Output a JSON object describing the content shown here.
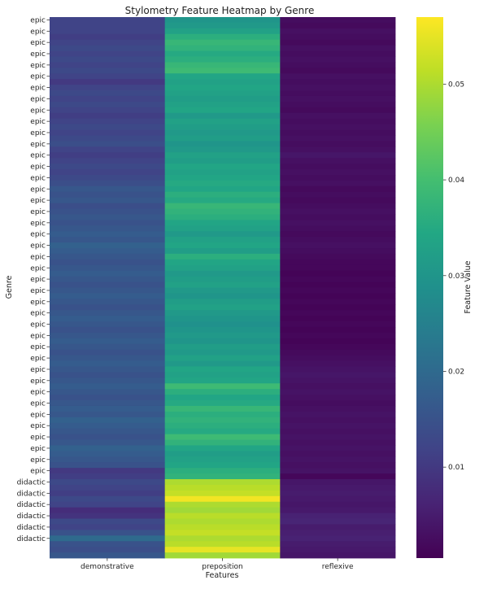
{
  "chart_data": {
    "type": "heatmap",
    "title": "Stylometry Feature Heatmap by Genre",
    "xlabel": "Features",
    "ylabel": "Genre",
    "columns": [
      "demonstrative",
      "preposition",
      "reflexive"
    ],
    "rows": [
      {
        "label": "epic",
        "values": [
          0.012,
          0.03,
          0.0025
        ]
      },
      {
        "label": "epic",
        "values": [
          0.012,
          0.031,
          0.002
        ]
      },
      {
        "label": "epic",
        "values": [
          0.012,
          0.033,
          0.003
        ]
      },
      {
        "label": "epic",
        "values": [
          0.011,
          0.036,
          0.0025
        ]
      },
      {
        "label": "epic",
        "values": [
          0.012,
          0.038,
          0.002
        ]
      },
      {
        "label": "epic",
        "values": [
          0.013,
          0.037,
          0.003
        ]
      },
      {
        "label": "epic",
        "values": [
          0.012,
          0.035,
          0.0025
        ]
      },
      {
        "label": "epic",
        "values": [
          0.013,
          0.036,
          0.003
        ]
      },
      {
        "label": "epic",
        "values": [
          0.012,
          0.038,
          0.0025
        ]
      },
      {
        "label": "epic",
        "values": [
          0.013,
          0.039,
          0.002
        ]
      },
      {
        "label": "epic",
        "values": [
          0.012,
          0.034,
          0.003
        ]
      },
      {
        "label": "epic",
        "values": [
          0.01,
          0.033,
          0.0025
        ]
      },
      {
        "label": "epic",
        "values": [
          0.012,
          0.034,
          0.003
        ]
      },
      {
        "label": "epic",
        "values": [
          0.013,
          0.033,
          0.0025
        ]
      },
      {
        "label": "epic",
        "values": [
          0.012,
          0.032,
          0.003
        ]
      },
      {
        "label": "epic",
        "values": [
          0.013,
          0.033,
          0.0025
        ]
      },
      {
        "label": "epic",
        "values": [
          0.012,
          0.034,
          0.002
        ]
      },
      {
        "label": "epic",
        "values": [
          0.011,
          0.031,
          0.003
        ]
      },
      {
        "label": "epic",
        "values": [
          0.012,
          0.033,
          0.0025
        ]
      },
      {
        "label": "epic",
        "values": [
          0.013,
          0.032,
          0.003
        ]
      },
      {
        "label": "epic",
        "values": [
          0.012,
          0.031,
          0.0025
        ]
      },
      {
        "label": "epic",
        "values": [
          0.013,
          0.032,
          0.003
        ]
      },
      {
        "label": "epic",
        "values": [
          0.014,
          0.03,
          0.0025
        ]
      },
      {
        "label": "epic",
        "values": [
          0.012,
          0.031,
          0.003
        ]
      },
      {
        "label": "epic",
        "values": [
          0.011,
          0.033,
          0.004
        ]
      },
      {
        "label": "epic",
        "values": [
          0.012,
          0.032,
          0.003
        ]
      },
      {
        "label": "epic",
        "values": [
          0.013,
          0.034,
          0.0025
        ]
      },
      {
        "label": "epic",
        "values": [
          0.012,
          0.033,
          0.003
        ]
      },
      {
        "label": "epic",
        "values": [
          0.013,
          0.034,
          0.0025
        ]
      },
      {
        "label": "epic",
        "values": [
          0.014,
          0.035,
          0.003
        ]
      },
      {
        "label": "epic",
        "values": [
          0.016,
          0.034,
          0.002
        ]
      },
      {
        "label": "epic",
        "values": [
          0.015,
          0.036,
          0.0025
        ]
      },
      {
        "label": "epic",
        "values": [
          0.016,
          0.035,
          0.002
        ]
      },
      {
        "label": "epic",
        "values": [
          0.014,
          0.038,
          0.0025
        ]
      },
      {
        "label": "epic",
        "values": [
          0.015,
          0.037,
          0.003
        ]
      },
      {
        "label": "epic",
        "values": [
          0.016,
          0.036,
          0.0025
        ]
      },
      {
        "label": "epic",
        "values": [
          0.015,
          0.034,
          0.003
        ]
      },
      {
        "label": "epic",
        "values": [
          0.016,
          0.033,
          0.0025
        ]
      },
      {
        "label": "epic",
        "values": [
          0.017,
          0.031,
          0.002
        ]
      },
      {
        "label": "epic",
        "values": [
          0.016,
          0.033,
          0.0025
        ]
      },
      {
        "label": "epic",
        "values": [
          0.018,
          0.034,
          0.003
        ]
      },
      {
        "label": "epic",
        "values": [
          0.017,
          0.032,
          0.0025
        ]
      },
      {
        "label": "epic",
        "values": [
          0.016,
          0.036,
          0.002
        ]
      },
      {
        "label": "epic",
        "values": [
          0.015,
          0.034,
          0.0015
        ]
      },
      {
        "label": "epic",
        "values": [
          0.016,
          0.033,
          0.0015
        ]
      },
      {
        "label": "epic",
        "values": [
          0.017,
          0.031,
          0.001
        ]
      },
      {
        "label": "epic",
        "values": [
          0.016,
          0.032,
          0.0015
        ]
      },
      {
        "label": "epic",
        "values": [
          0.015,
          0.033,
          0.001
        ]
      },
      {
        "label": "epic",
        "values": [
          0.016,
          0.031,
          0.0015
        ]
      },
      {
        "label": "epic",
        "values": [
          0.017,
          0.03,
          0.001
        ]
      },
      {
        "label": "epic",
        "values": [
          0.016,
          0.032,
          0.0015
        ]
      },
      {
        "label": "epic",
        "values": [
          0.015,
          0.033,
          0.001
        ]
      },
      {
        "label": "epic",
        "values": [
          0.016,
          0.031,
          0.0015
        ]
      },
      {
        "label": "epic",
        "values": [
          0.017,
          0.03,
          0.001
        ]
      },
      {
        "label": "epic",
        "values": [
          0.016,
          0.029,
          0.0015
        ]
      },
      {
        "label": "epic",
        "values": [
          0.015,
          0.03,
          0.001
        ]
      },
      {
        "label": "epic",
        "values": [
          0.016,
          0.031,
          0.0015
        ]
      },
      {
        "label": "epic",
        "values": [
          0.017,
          0.03,
          0.001
        ]
      },
      {
        "label": "epic",
        "values": [
          0.016,
          0.032,
          0.0015
        ]
      },
      {
        "label": "epic",
        "values": [
          0.015,
          0.031,
          0.002
        ]
      },
      {
        "label": "epic",
        "values": [
          0.016,
          0.033,
          0.0025
        ]
      },
      {
        "label": "epic",
        "values": [
          0.017,
          0.031,
          0.003
        ]
      },
      {
        "label": "epic",
        "values": [
          0.016,
          0.034,
          0.0035
        ]
      },
      {
        "label": "epic",
        "values": [
          0.015,
          0.033,
          0.004
        ]
      },
      {
        "label": "epic",
        "values": [
          0.016,
          0.034,
          0.0035
        ]
      },
      {
        "label": "epic",
        "values": [
          0.017,
          0.039,
          0.003
        ]
      },
      {
        "label": "epic",
        "values": [
          0.016,
          0.036,
          0.0035
        ]
      },
      {
        "label": "epic",
        "values": [
          0.015,
          0.034,
          0.003
        ]
      },
      {
        "label": "epic",
        "values": [
          0.016,
          0.035,
          0.0025
        ]
      },
      {
        "label": "epic",
        "values": [
          0.017,
          0.038,
          0.003
        ]
      },
      {
        "label": "epic",
        "values": [
          0.016,
          0.036,
          0.0035
        ]
      },
      {
        "label": "epic",
        "values": [
          0.018,
          0.037,
          0.003
        ]
      },
      {
        "label": "epic",
        "values": [
          0.017,
          0.036,
          0.0035
        ]
      },
      {
        "label": "epic",
        "values": [
          0.016,
          0.035,
          0.003
        ]
      },
      {
        "label": "epic",
        "values": [
          0.015,
          0.039,
          0.0035
        ]
      },
      {
        "label": "epic",
        "values": [
          0.016,
          0.037,
          0.003
        ]
      },
      {
        "label": "epic",
        "values": [
          0.018,
          0.034,
          0.0035
        ]
      },
      {
        "label": "epic",
        "values": [
          0.017,
          0.032,
          0.003
        ]
      },
      {
        "label": "epic",
        "values": [
          0.016,
          0.033,
          0.0035
        ]
      },
      {
        "label": "epic",
        "values": [
          0.015,
          0.034,
          0.003
        ]
      },
      {
        "label": "epic",
        "values": [
          0.01,
          0.036,
          0.0035
        ]
      },
      {
        "label": "epic",
        "values": [
          0.011,
          0.037,
          0.0015
        ]
      },
      {
        "label": "didactic",
        "values": [
          0.013,
          0.05,
          0.004
        ]
      },
      {
        "label": "didactic",
        "values": [
          0.012,
          0.051,
          0.0045
        ]
      },
      {
        "label": "didactic",
        "values": [
          0.011,
          0.052,
          0.005
        ]
      },
      {
        "label": "didactic",
        "values": [
          0.013,
          0.056,
          0.0045
        ]
      },
      {
        "label": "didactic",
        "values": [
          0.012,
          0.05,
          0.004
        ]
      },
      {
        "label": "didactic",
        "values": [
          0.008,
          0.049,
          0.0045
        ]
      },
      {
        "label": "didactic",
        "values": [
          0.009,
          0.051,
          0.006
        ]
      },
      {
        "label": "didactic",
        "values": [
          0.013,
          0.05,
          0.0065
        ]
      },
      {
        "label": "didactic",
        "values": [
          0.012,
          0.051,
          0.005
        ]
      },
      {
        "label": "didactic",
        "values": [
          0.015,
          0.052,
          0.0055
        ]
      },
      {
        "label": "didactic",
        "values": [
          0.02,
          0.05,
          0.006
        ]
      },
      {
        "label": "didactic",
        "values": [
          0.015,
          0.051,
          0.005
        ]
      },
      {
        "label": "didactic",
        "values": [
          0.014,
          0.055,
          0.0045
        ]
      },
      {
        "label": "didactic",
        "values": [
          0.016,
          0.049,
          0.004
        ]
      }
    ],
    "ytick_labels": [
      "epic",
      "epic",
      "epic",
      "epic",
      "epic",
      "epic",
      "epic",
      "epic",
      "epic",
      "epic",
      "epic",
      "epic",
      "epic",
      "epic",
      "epic",
      "epic",
      "epic",
      "epic",
      "epic",
      "epic",
      "epic",
      "epic",
      "epic",
      "epic",
      "epic",
      "epic",
      "epic",
      "epic",
      "epic",
      "epic",
      "epic",
      "epic",
      "epic",
      "epic",
      "epic",
      "epic",
      "epic",
      "epic",
      "epic",
      "epic",
      "epic",
      "didactic",
      "didactic",
      "didactic",
      "didactic",
      "didactic",
      "didactic"
    ],
    "ytick_row_indices": [
      0,
      2,
      4,
      6,
      8,
      10,
      12,
      14,
      16,
      18,
      20,
      22,
      24,
      26,
      28,
      30,
      32,
      34,
      36,
      38,
      40,
      42,
      44,
      46,
      48,
      50,
      52,
      54,
      56,
      58,
      60,
      62,
      64,
      66,
      68,
      70,
      72,
      74,
      76,
      78,
      80,
      82,
      84,
      86,
      88,
      90,
      92
    ],
    "colorbar": {
      "label": "Feature Value",
      "range": [
        0.0005,
        0.057
      ],
      "ticks": [
        0.01,
        0.02,
        0.03,
        0.04,
        0.05
      ],
      "tick_labels": [
        "0.01",
        "0.02",
        "0.03",
        "0.04",
        "0.05"
      ],
      "colormap": "viridis"
    }
  }
}
